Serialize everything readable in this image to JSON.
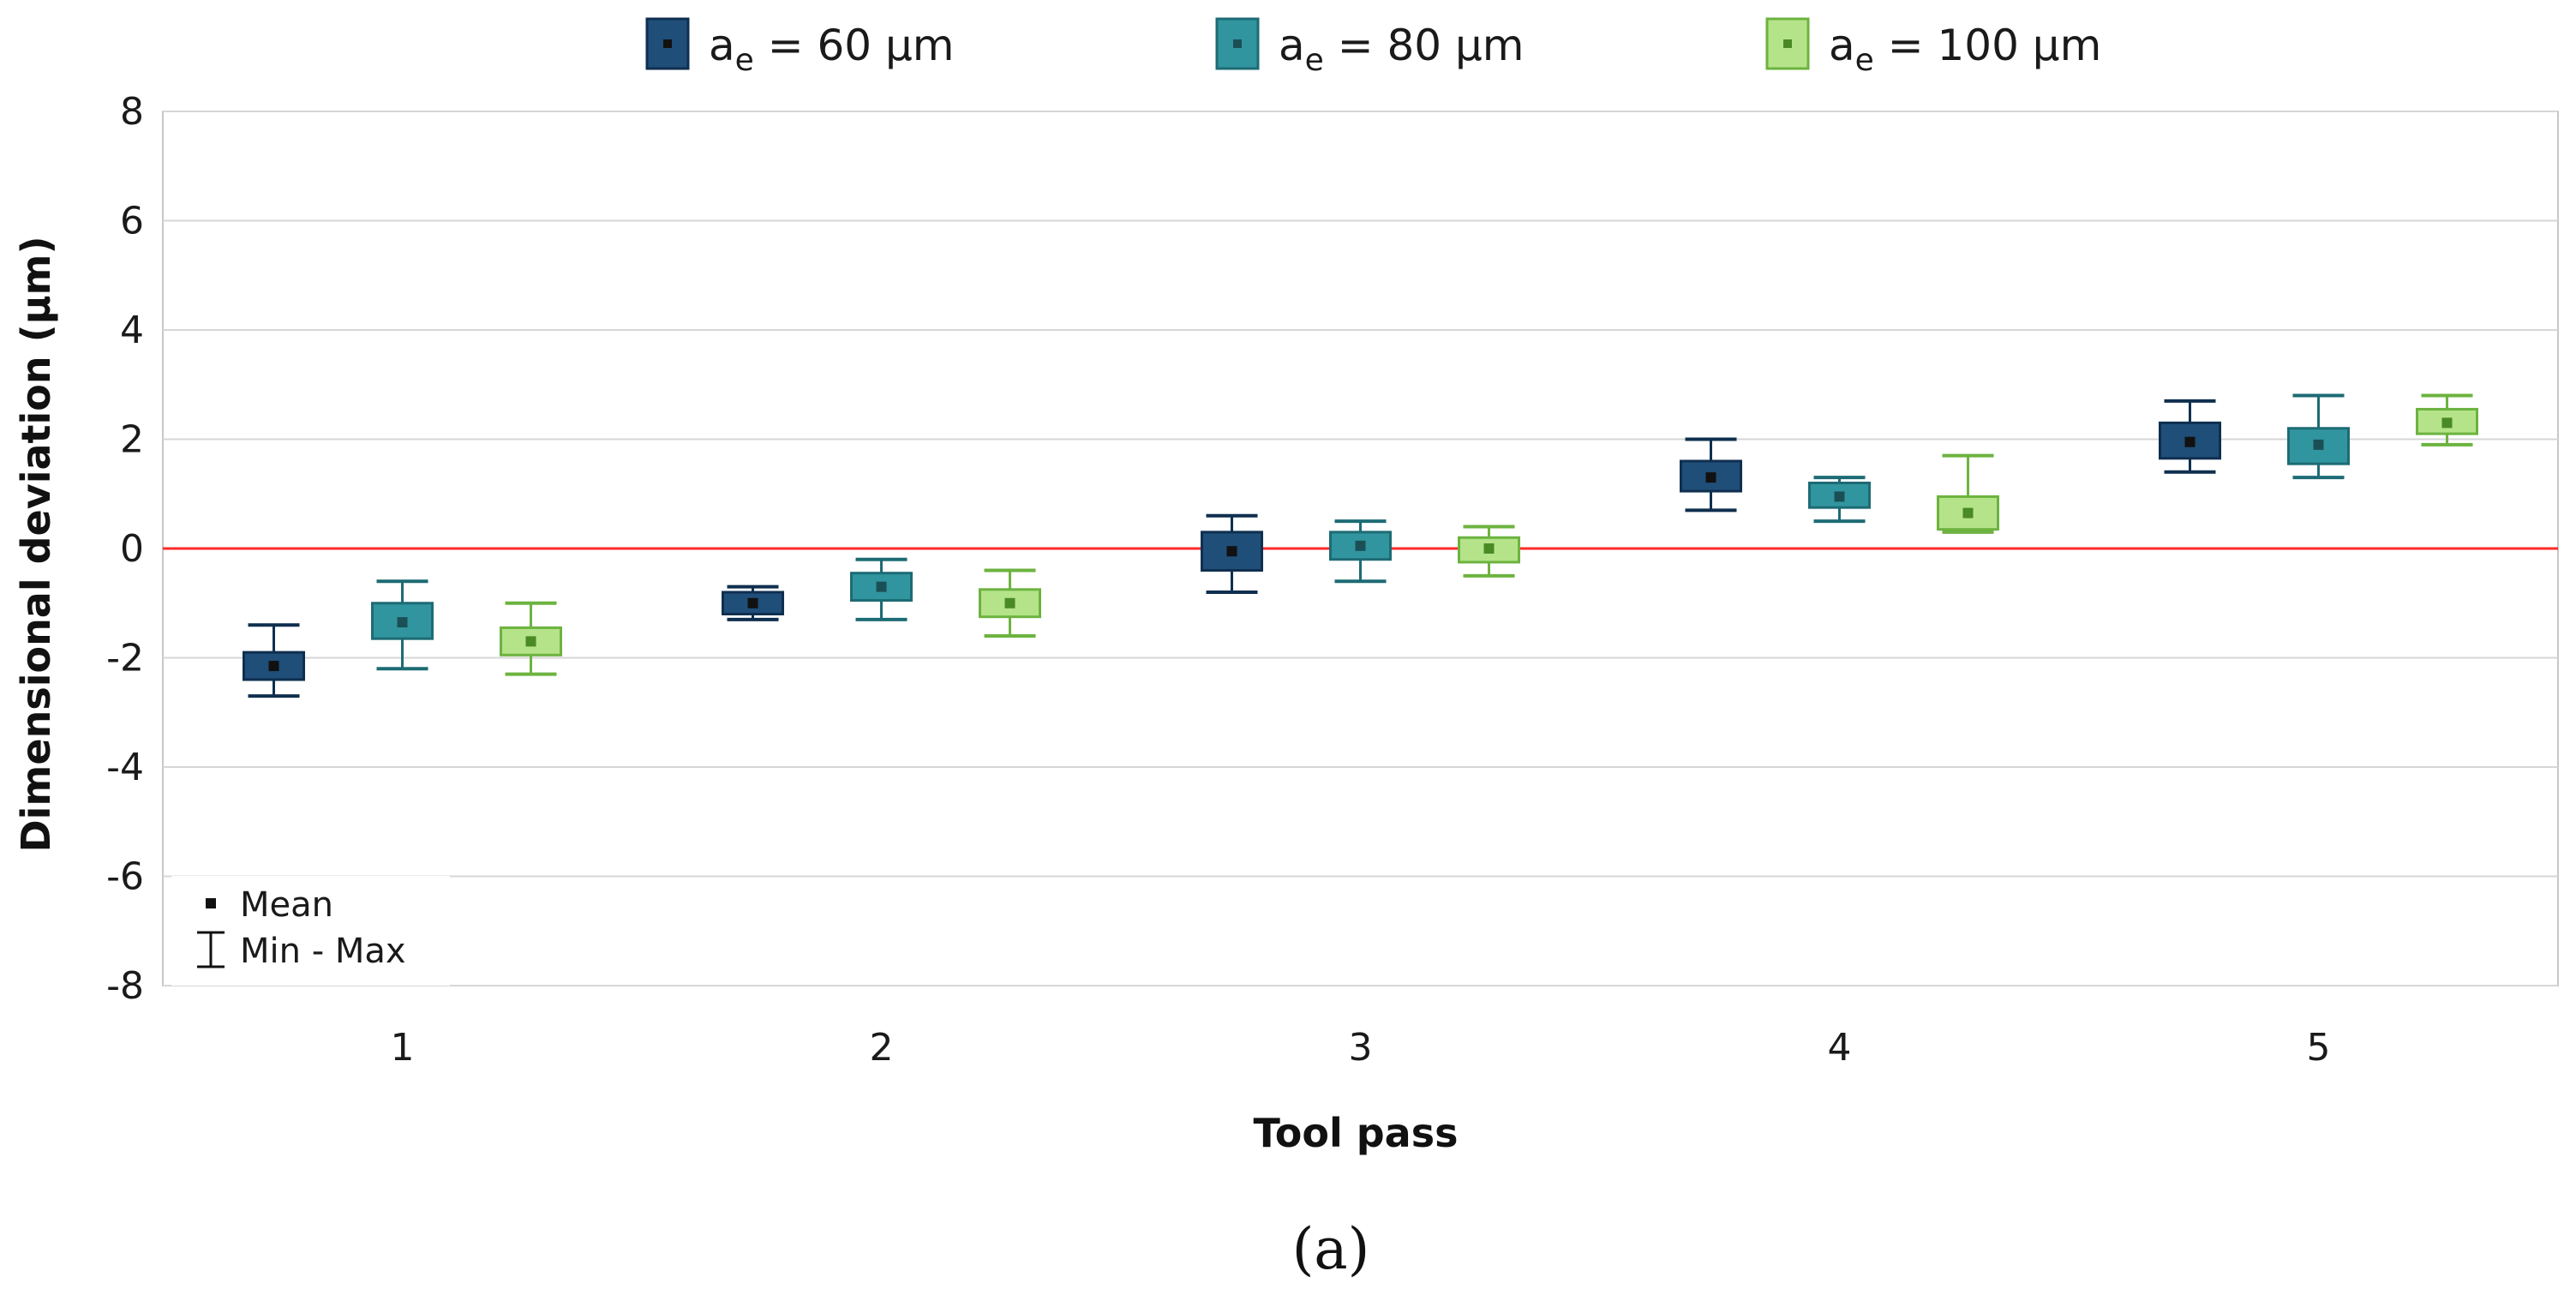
{
  "chart_data": {
    "type": "boxplot",
    "xlabel": "Tool pass",
    "ylabel": "Dimensional deviation (µm)",
    "ylim": [
      -8,
      8
    ],
    "ytick_step": 2,
    "yticks": [
      "-8",
      "-6",
      "-4",
      "-2",
      "0",
      "2",
      "4",
      "6",
      "8"
    ],
    "categories": [
      "1",
      "2",
      "3",
      "4",
      "5"
    ],
    "reference_line": {
      "value": 0,
      "color": "#ff2a2a"
    },
    "grid": true,
    "panel_label": "(a)",
    "key": {
      "mean_label": "Mean",
      "minmax_label": "Min - Max"
    },
    "series": [
      {
        "name": "a_e = 60 µm",
        "legend_main": "a",
        "legend_sub": "e",
        "legend_rest": " = 60 µm",
        "fill": "#1f4e79",
        "stroke": "#0f2f4f",
        "mean_color": "#111111",
        "values": [
          {
            "min": -2.7,
            "q1": -2.4,
            "mean": -2.15,
            "q3": -1.9,
            "max": -1.4
          },
          {
            "min": -1.3,
            "q1": -1.2,
            "mean": -1.0,
            "q3": -0.8,
            "max": -0.7
          },
          {
            "min": -0.8,
            "q1": -0.4,
            "mean": -0.05,
            "q3": 0.3,
            "max": 0.6
          },
          {
            "min": 0.7,
            "q1": 1.05,
            "mean": 1.3,
            "q3": 1.6,
            "max": 2.0
          },
          {
            "min": 1.4,
            "q1": 1.65,
            "mean": 1.95,
            "q3": 2.3,
            "max": 2.7
          }
        ]
      },
      {
        "name": "a_e = 80 µm",
        "legend_main": "a",
        "legend_sub": "e",
        "legend_rest": " = 80 µm",
        "fill": "#31959f",
        "stroke": "#1d6b74",
        "mean_color": "#1b4f56",
        "values": [
          {
            "min": -2.2,
            "q1": -1.65,
            "mean": -1.35,
            "q3": -1.0,
            "max": -0.6
          },
          {
            "min": -1.3,
            "q1": -0.95,
            "mean": -0.7,
            "q3": -0.45,
            "max": -0.2
          },
          {
            "min": -0.6,
            "q1": -0.2,
            "mean": 0.05,
            "q3": 0.3,
            "max": 0.5
          },
          {
            "min": 0.5,
            "q1": 0.75,
            "mean": 0.95,
            "q3": 1.2,
            "max": 1.3
          },
          {
            "min": 1.3,
            "q1": 1.55,
            "mean": 1.9,
            "q3": 2.2,
            "max": 2.8
          }
        ]
      },
      {
        "name": "a_e = 100 µm",
        "legend_main": "a",
        "legend_sub": "e",
        "legend_rest": " = 100 µm",
        "fill": "#b5e38a",
        "stroke": "#6cb33f",
        "mean_color": "#4a8a25",
        "values": [
          {
            "min": -2.3,
            "q1": -1.95,
            "mean": -1.7,
            "q3": -1.45,
            "max": -1.0
          },
          {
            "min": -1.6,
            "q1": -1.25,
            "mean": -1.0,
            "q3": -0.75,
            "max": -0.4
          },
          {
            "min": -0.5,
            "q1": -0.25,
            "mean": 0.0,
            "q3": 0.2,
            "max": 0.4
          },
          {
            "min": 0.3,
            "q1": 0.35,
            "mean": 0.65,
            "q3": 0.95,
            "max": 1.7
          },
          {
            "min": 1.9,
            "q1": 2.1,
            "mean": 2.3,
            "q3": 2.55,
            "max": 2.8
          }
        ]
      }
    ]
  }
}
